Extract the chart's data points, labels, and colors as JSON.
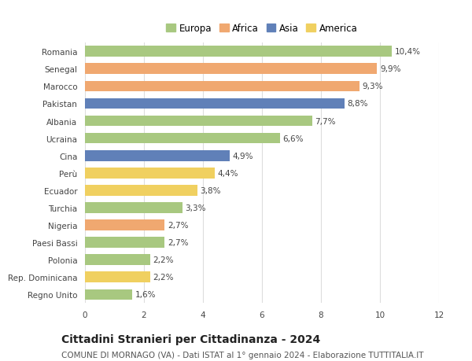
{
  "categories": [
    "Romania",
    "Senegal",
    "Marocco",
    "Pakistan",
    "Albania",
    "Ucraina",
    "Cina",
    "Perù",
    "Ecuador",
    "Turchia",
    "Nigeria",
    "Paesi Bassi",
    "Polonia",
    "Rep. Dominicana",
    "Regno Unito"
  ],
  "values": [
    10.4,
    9.9,
    9.3,
    8.8,
    7.7,
    6.6,
    4.9,
    4.4,
    3.8,
    3.3,
    2.7,
    2.7,
    2.2,
    2.2,
    1.6
  ],
  "continents": [
    "Europa",
    "Africa",
    "Africa",
    "Asia",
    "Europa",
    "Europa",
    "Asia",
    "America",
    "America",
    "Europa",
    "Africa",
    "Europa",
    "Europa",
    "America",
    "Europa"
  ],
  "colors": {
    "Europa": "#a8c880",
    "Africa": "#f0a870",
    "Asia": "#6080b8",
    "America": "#f0d060"
  },
  "legend_order": [
    "Europa",
    "Africa",
    "Asia",
    "America"
  ],
  "xlim": [
    0,
    12
  ],
  "xticks": [
    0,
    2,
    4,
    6,
    8,
    10,
    12
  ],
  "title": "Cittadini Stranieri per Cittadinanza - 2024",
  "subtitle": "COMUNE DI MORNAGO (VA) - Dati ISTAT al 1° gennaio 2024 - Elaborazione TUTTITALIA.IT",
  "title_fontsize": 10,
  "subtitle_fontsize": 7.5,
  "label_fontsize": 7.5,
  "tick_fontsize": 7.5,
  "legend_fontsize": 8.5,
  "bar_height": 0.62,
  "background_color": "#ffffff",
  "grid_color": "#dddddd"
}
